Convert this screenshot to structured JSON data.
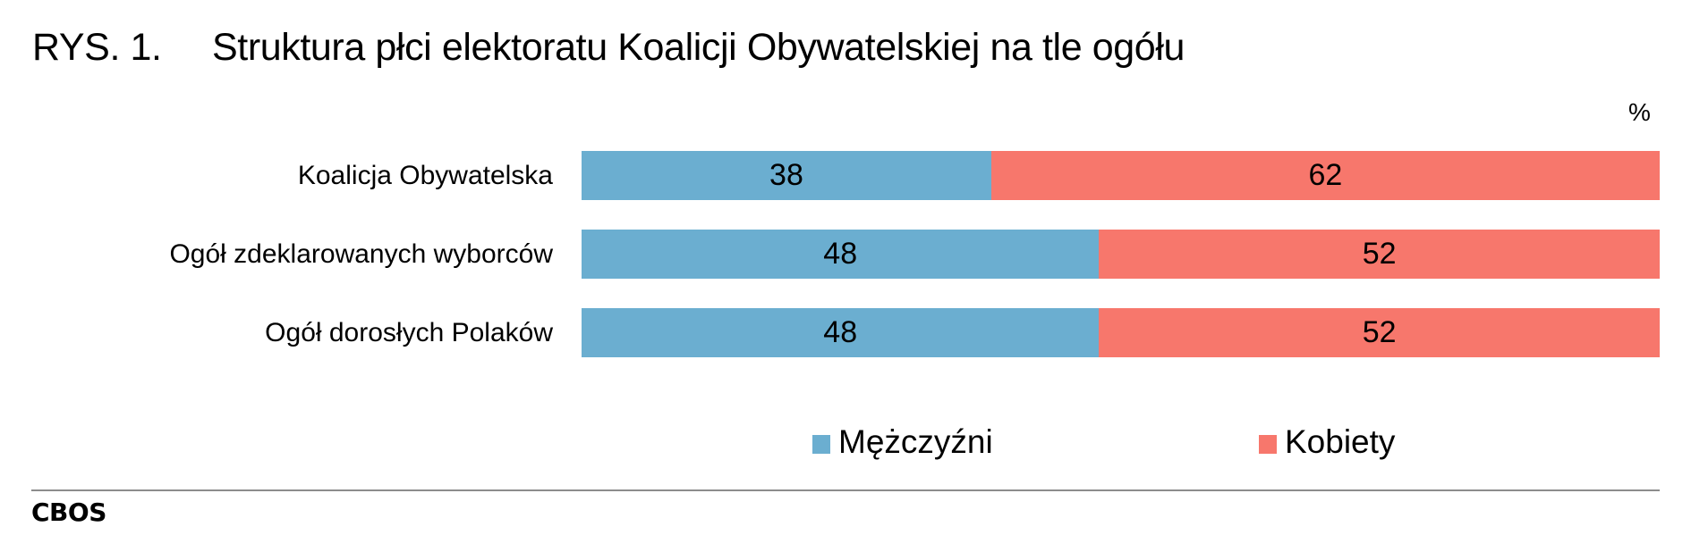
{
  "figure": {
    "number": "RYS. 1.",
    "title": "Struktura płci elektoratu Koalicji Obywatelskiej na tle ogółu",
    "unit": "%",
    "source": "CBOS"
  },
  "colors": {
    "men": "#6BAED0",
    "women": "#F7776C",
    "divider": "#8C8C8C"
  },
  "legend": [
    {
      "label": "Mężczyźni",
      "color": "#6BAED0"
    },
    {
      "label": "Kobiety",
      "color": "#F7776C"
    }
  ],
  "rows": [
    {
      "label": "Koalicja Obywatelska",
      "men": "38",
      "women": "62"
    },
    {
      "label": "Ogół zdeklarowanych wyborców",
      "men": "48",
      "women": "52"
    },
    {
      "label": "Ogół dorosłych Polaków",
      "men": "48",
      "women": "52"
    }
  ],
  "chart_data": {
    "type": "bar",
    "orientation": "horizontal",
    "stacked": true,
    "percent_stacked": true,
    "title": "RYS. 1. Struktura płci elektoratu Koalicji Obywatelskiej na tle ogółu",
    "xlabel": "",
    "ylabel": "",
    "unit": "%",
    "categories": [
      "Koalicja Obywatelska",
      "Ogół zdeklarowanych wyborców",
      "Ogół dorosłych Polaków"
    ],
    "series": [
      {
        "name": "Mężczyźni",
        "values": [
          38,
          48,
          48
        ],
        "color": "#6BAED0"
      },
      {
        "name": "Kobiety",
        "values": [
          62,
          52,
          52
        ],
        "color": "#F7776C"
      }
    ],
    "xlim": [
      0,
      100
    ],
    "grid": false,
    "data_labels": true,
    "legend_position": "bottom",
    "source": "CBOS"
  }
}
